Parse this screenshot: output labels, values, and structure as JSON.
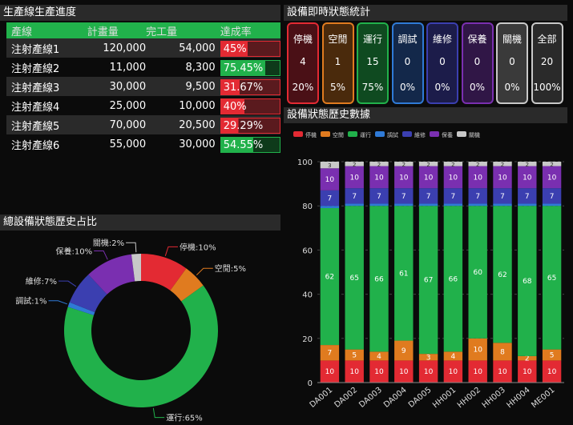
{
  "production": {
    "title": "生產線生產進度",
    "headers": [
      "產線",
      "計畫量",
      "完工量",
      "達成率"
    ],
    "rows": [
      {
        "line": "注射產線1",
        "plan": "120,000",
        "done": "54,000",
        "rate": "45%",
        "rate_value": 45
      },
      {
        "line": "注射產線2",
        "plan": "11,000",
        "done": "8,300",
        "rate": "75.45%",
        "rate_value": 75.45
      },
      {
        "line": "注射產線3",
        "plan": "30,000",
        "done": "9,500",
        "rate": "31.67%",
        "rate_value": 31.67
      },
      {
        "line": "注射產線4",
        "plan": "25,000",
        "done": "10,000",
        "rate": "40%",
        "rate_value": 40
      },
      {
        "line": "注射產線5",
        "plan": "70,000",
        "done": "20,500",
        "rate": "29.29%",
        "rate_value": 29.29
      },
      {
        "line": "注射產線6",
        "plan": "55,000",
        "done": "30,000",
        "rate": "54.55%",
        "rate_value": 54.55
      }
    ],
    "colors": {
      "low": "#e32a33",
      "high": "#21b14b"
    }
  },
  "status": {
    "title": "設備即時狀態統計",
    "cards": [
      {
        "label": "停機",
        "count": "4",
        "pct": "20%",
        "color": "#e32a33",
        "bg": "#4a1016"
      },
      {
        "label": "空閒",
        "count": "1",
        "pct": "5%",
        "color": "#e07b1f",
        "bg": "#4a2a0c"
      },
      {
        "label": "運行",
        "count": "15",
        "pct": "75%",
        "color": "#21b14b",
        "bg": "#0f4a20"
      },
      {
        "label": "調試",
        "count": "0",
        "pct": "0%",
        "color": "#2f7ad6",
        "bg": "#13284a"
      },
      {
        "label": "維修",
        "count": "0",
        "pct": "0%",
        "color": "#3b3fb0",
        "bg": "#1c1c4a"
      },
      {
        "label": "保養",
        "count": "0",
        "pct": "0%",
        "color": "#7a2fb0",
        "bg": "#301646"
      },
      {
        "label": "關機",
        "count": "0",
        "pct": "0%",
        "color": "#c8c8c8",
        "bg": "#3a3a3a"
      },
      {
        "label": "全部",
        "count": "20",
        "pct": "100%",
        "color": "#c8c8c8",
        "bg": "#2a2a2a"
      }
    ]
  },
  "pie_title": "總設備狀態歷史占比",
  "history_title": "設備狀態歷史數據",
  "chart_data": [
    {
      "type": "pie",
      "title": "總設備狀態歷史占比",
      "slices": [
        {
          "name": "停機",
          "value": 10,
          "label": "停機:10%",
          "color": "#e32a33"
        },
        {
          "name": "空閒",
          "value": 5,
          "label": "空閒:5%",
          "color": "#e07b1f"
        },
        {
          "name": "運行",
          "value": 65,
          "label": "運行:65%",
          "color": "#21b14b"
        },
        {
          "name": "調試",
          "value": 1,
          "label": "調試:1%",
          "color": "#2f7ad6"
        },
        {
          "name": "維修",
          "value": 7,
          "label": "維修:7%",
          "color": "#3b3fb0"
        },
        {
          "name": "保養",
          "value": 10,
          "label": "保養:10%",
          "color": "#7a2fb0"
        },
        {
          "name": "關機",
          "value": 2,
          "label": "關機:2%",
          "color": "#c8c8c8"
        }
      ]
    },
    {
      "type": "bar",
      "stacked": true,
      "title": "設備狀態歷史數據",
      "categories": [
        "DA001",
        "DA002",
        "DA003",
        "DA004",
        "DA005",
        "HH001",
        "HH002",
        "HH003",
        "HH004",
        "ME001"
      ],
      "ylim": [
        0,
        100
      ],
      "yticks": [
        0,
        20,
        40,
        60,
        80,
        100
      ],
      "legend_position": "top",
      "series": [
        {
          "name": "停機",
          "color": "#e32a33",
          "values": [
            10,
            10,
            10,
            10,
            10,
            10,
            10,
            10,
            10,
            10
          ]
        },
        {
          "name": "空閒",
          "color": "#e07b1f",
          "values": [
            7,
            5,
            4,
            9,
            3,
            4,
            10,
            8,
            2,
            5
          ]
        },
        {
          "name": "運行",
          "color": "#21b14b",
          "values": [
            62,
            65,
            66,
            61,
            67,
            66,
            60,
            62,
            68,
            65
          ]
        },
        {
          "name": "調試",
          "color": "#2f7ad6",
          "values": [
            1,
            1,
            1,
            1,
            1,
            1,
            1,
            1,
            1,
            1
          ]
        },
        {
          "name": "維修",
          "color": "#3b3fb0",
          "values": [
            7,
            7,
            7,
            7,
            7,
            7,
            7,
            7,
            7,
            7
          ]
        },
        {
          "name": "保養",
          "color": "#7a2fb0",
          "values": [
            10,
            10,
            10,
            10,
            10,
            10,
            10,
            10,
            10,
            10
          ]
        },
        {
          "name": "關機",
          "color": "#c8c8c8",
          "values": [
            3,
            2,
            2,
            2,
            2,
            2,
            2,
            2,
            2,
            2
          ]
        }
      ]
    }
  ]
}
